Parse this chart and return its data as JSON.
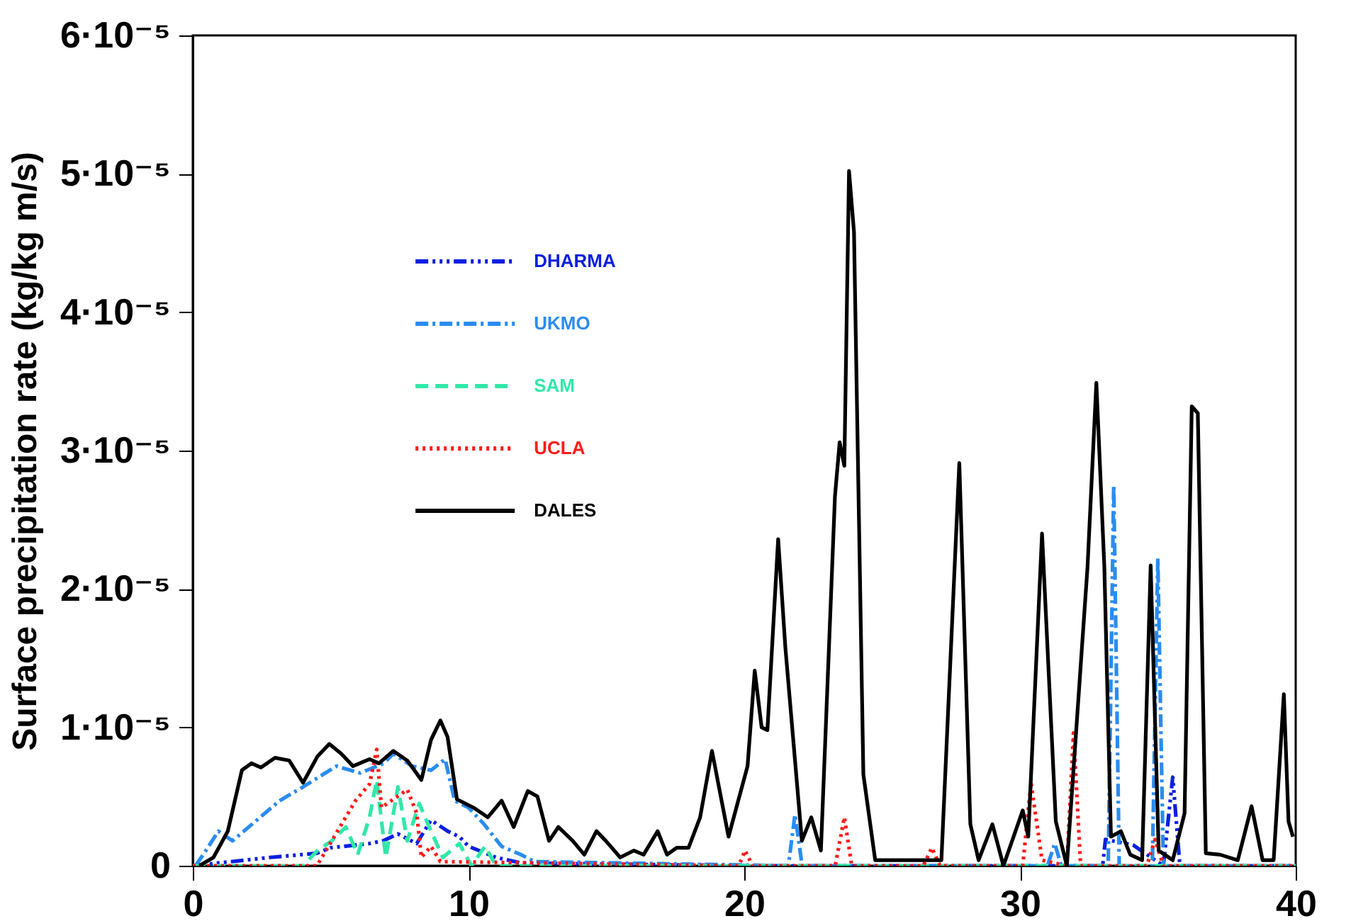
{
  "chart_data": {
    "type": "line",
    "ylabel": "Surface precipitation rate (kg/kg m/s)",
    "xlim": [
      0,
      40
    ],
    "xticks": [
      0,
      10,
      20,
      30,
      40
    ],
    "ylim": [
      0,
      6e-05
    ],
    "yticks": [
      {
        "value": 0,
        "label": "0"
      },
      {
        "value": 1e-05,
        "label": "1·10⁻⁵"
      },
      {
        "value": 2e-05,
        "label": "2·10⁻⁵"
      },
      {
        "value": 3e-05,
        "label": "3·10⁻⁵"
      },
      {
        "value": 4e-05,
        "label": "4·10⁻⁵"
      },
      {
        "value": 5e-05,
        "label": "5·10⁻⁵"
      },
      {
        "value": 6e-05,
        "label": "6·10⁻⁵"
      }
    ],
    "legend": "left",
    "series": [
      {
        "name": "DHARMA",
        "color": "#0a1fe0",
        "line_style": "dashdotdotdot",
        "x": [
          0,
          2.8,
          4.5,
          5.0,
          6.4,
          6.9,
          7.44,
          8.12,
          8.64,
          9.24,
          9.67,
          10.0,
          11.0,
          11.9,
          20,
          33.0,
          33.1,
          34.1,
          35.2,
          35.54,
          35.8,
          40
        ],
        "values": [
          0,
          6e-07,
          9e-07,
          1.3e-06,
          1.6e-06,
          1.8e-06,
          2.3e-06,
          1.6e-06,
          3.3e-06,
          2.5e-06,
          2.1e-06,
          1.4e-06,
          6e-07,
          2e-07,
          0,
          0,
          1.9e-06,
          1.5e-06,
          0,
          6.4e-06,
          0,
          0
        ]
      },
      {
        "name": "UKMO",
        "color": "#2a8cf0",
        "line_style": "dashdot",
        "x": [
          0.1,
          0.41,
          0.93,
          1.44,
          3.15,
          4.0,
          5.21,
          6.07,
          6.93,
          7.27,
          7.95,
          8.64,
          9.15,
          9.5,
          10.0,
          10.52,
          11.2,
          11.9,
          12.4,
          21.6,
          21.84,
          22.1,
          31.0,
          31.26,
          31.5,
          33.2,
          33.4,
          33.6,
          34.8,
          35.0,
          35.2,
          40
        ],
        "values": [
          0,
          9e-07,
          2.5e-06,
          1.8e-06,
          4.7e-06,
          5.7e-06,
          7.2e-06,
          6.7e-06,
          7.4e-06,
          8.1e-06,
          7.2e-06,
          6.9e-06,
          7.7e-06,
          4.7e-06,
          4.2e-06,
          3.1e-06,
          1.4e-06,
          8e-07,
          3e-07,
          0,
          3.7e-06,
          0,
          0,
          1.6e-06,
          0,
          0,
          2.75e-05,
          0,
          0,
          2.22e-05,
          0,
          0
        ]
      },
      {
        "name": "SAM",
        "color": "#30e8a8",
        "line_style": "dashed",
        "x": [
          0,
          4.0,
          4.52,
          5.04,
          5.55,
          5.98,
          6.41,
          6.67,
          7.0,
          7.44,
          7.78,
          8.21,
          8.64,
          9.07,
          9.67,
          10.1,
          10.6,
          11.0,
          40
        ],
        "values": [
          0,
          0,
          1.1e-06,
          1.8e-06,
          2.8e-06,
          8e-07,
          3.5e-06,
          6.2e-06,
          6e-07,
          5.7e-06,
          1.8e-06,
          4.5e-06,
          2.5e-06,
          6e-07,
          1.6e-06,
          0,
          1.4e-06,
          0,
          0
        ]
      },
      {
        "name": "UCLA",
        "color": "#ff1a1a",
        "line_style": "dotted",
        "x": [
          0,
          4.5,
          5.04,
          5.9,
          6.41,
          6.67,
          6.84,
          7.27,
          7.78,
          8.12,
          8.29,
          8.64,
          8.98,
          19.8,
          20.03,
          20.3,
          23.3,
          23.63,
          23.9,
          26.5,
          26.8,
          27.1,
          30.1,
          30.4,
          30.8,
          31.7,
          31.94,
          32.2,
          34.6,
          34.9,
          35.2,
          40
        ],
        "values": [
          0,
          0,
          1.8e-06,
          4.7e-06,
          5.9e-06,
          8.4e-06,
          4.2e-06,
          4.8e-06,
          5.5e-06,
          3.8e-06,
          6e-07,
          1.4e-06,
          3e-07,
          0,
          1.1e-06,
          0,
          0,
          3.5e-06,
          0,
          0,
          1.3e-06,
          0,
          0,
          6e-06,
          4e-07,
          0,
          9.6e-06,
          0,
          0,
          1.9e-06,
          0,
          0
        ]
      },
      {
        "name": "DALES",
        "color": "#000000",
        "line_style": "solid",
        "x": [
          0.24,
          0.75,
          1.27,
          1.78,
          2.13,
          2.47,
          2.98,
          3.5,
          4.0,
          4.52,
          4.95,
          5.38,
          5.81,
          6.41,
          6.75,
          7.27,
          7.78,
          8.29,
          8.64,
          8.98,
          9.24,
          9.58,
          10.18,
          10.7,
          11.2,
          11.64,
          12.15,
          12.5,
          12.92,
          13.26,
          13.78,
          14.2,
          14.64,
          14.98,
          15.5,
          16.0,
          16.35,
          16.86,
          17.2,
          17.55,
          17.98,
          18.4,
          18.83,
          19.43,
          20.12,
          20.38,
          20.63,
          20.84,
          21.23,
          21.49,
          22.09,
          22.43,
          22.78,
          23.29,
          23.46,
          23.63,
          23.8,
          23.98,
          24.32,
          24.75,
          27.15,
          27.8,
          28.2,
          28.5,
          29.0,
          29.4,
          30.1,
          30.3,
          30.8,
          31.3,
          31.7,
          32.45,
          32.77,
          33.06,
          33.3,
          33.66,
          34.0,
          34.43,
          34.74,
          35.03,
          35.54,
          35.97,
          36.23,
          36.45,
          36.74,
          37.26,
          37.9,
          38.4,
          38.8,
          39.2,
          39.57,
          39.74,
          39.9
        ],
        "values": [
          0,
          6e-07,
          2.5e-06,
          6.9e-06,
          7.4e-06,
          7.1e-06,
          7.8e-06,
          7.6e-06,
          6e-06,
          7.9e-06,
          8.8e-06,
          8.1e-06,
          7.2e-06,
          7.7e-06,
          7.4e-06,
          8.3e-06,
          7.6e-06,
          6.2e-06,
          9.1e-06,
          1.05e-05,
          9.3e-06,
          4.8e-06,
          4.2e-06,
          3.5e-06,
          4.7e-06,
          2.8e-06,
          5.4e-06,
          5e-06,
          1.8e-06,
          2.8e-06,
          1.8e-06,
          8e-07,
          2.5e-06,
          1.8e-06,
          6e-07,
          1.1e-06,
          8e-07,
          2.5e-06,
          8e-07,
          1.3e-06,
          1.3e-06,
          3.5e-06,
          8.3e-06,
          2.1e-06,
          7.2e-06,
          1.41e-05,
          1e-05,
          9.8e-06,
          2.36e-05,
          1.58e-05,
          1.8e-06,
          3.5e-06,
          1.1e-06,
          2.67e-05,
          3.06e-05,
          2.89e-05,
          5.02e-05,
          4.58e-05,
          6.6e-06,
          4e-07,
          4e-07,
          2.91e-05,
          3e-06,
          4e-07,
          3e-06,
          0,
          4e-06,
          2.1e-06,
          2.4e-05,
          3.2e-06,
          0,
          2.16e-05,
          3.49e-05,
          2.16e-05,
          2.1e-06,
          2.5e-06,
          8e-07,
          4e-07,
          2.17e-05,
          1.1e-06,
          4e-07,
          3.8e-06,
          3.32e-05,
          3.27e-05,
          9e-07,
          8e-07,
          4e-07,
          4.3e-06,
          4e-07,
          4e-07,
          1.24e-05,
          3.2e-06,
          2.1e-06
        ]
      }
    ]
  }
}
